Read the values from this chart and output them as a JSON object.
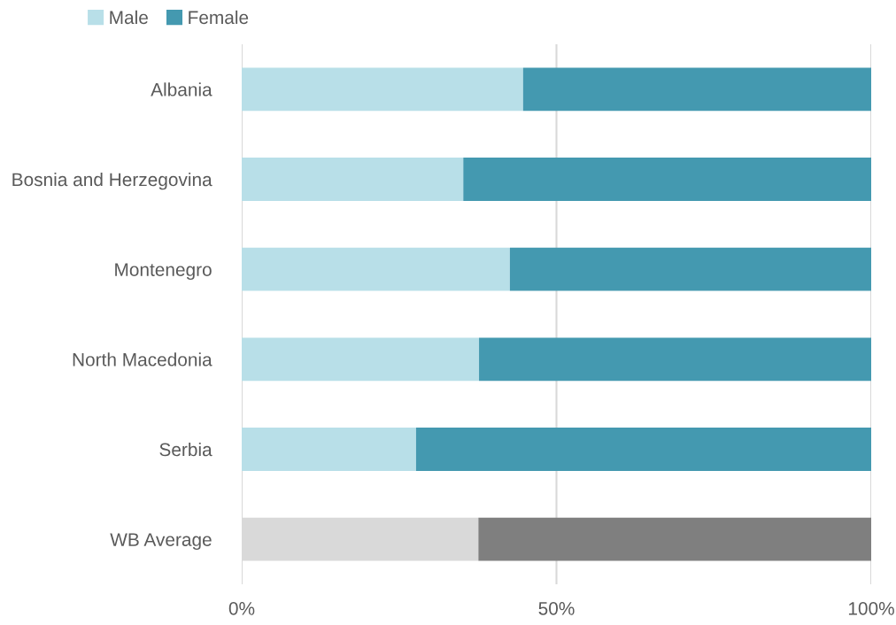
{
  "chart_data": {
    "type": "bar",
    "orientation": "horizontal",
    "stacked": true,
    "categories": [
      "Albania",
      "Bosnia and Herzegovina",
      "Montenegro",
      "North Macedonia",
      "Serbia",
      "WB Average"
    ],
    "series": [
      {
        "name": "Male",
        "color": "#b8dfe8",
        "colors": [
          "#b8dfe8",
          "#b8dfe8",
          "#b8dfe8",
          "#b8dfe8",
          "#b8dfe8",
          "#d9d9d9"
        ],
        "values": [
          44.7,
          35.2,
          42.6,
          37.7,
          27.7,
          37.6
        ]
      },
      {
        "name": "Female",
        "color": "#4499b0",
        "colors": [
          "#4499b0",
          "#4499b0",
          "#4499b0",
          "#4499b0",
          "#4499b0",
          "#7f7f7f"
        ],
        "values": [
          55.3,
          64.8,
          57.4,
          62.3,
          72.3,
          62.4
        ]
      }
    ],
    "xlim": [
      0,
      100
    ],
    "xticks": [
      {
        "value": 0,
        "label": "0%"
      },
      {
        "value": 50,
        "label": "50%"
      },
      {
        "value": 100,
        "label": "100%"
      }
    ],
    "grid": "x",
    "legend": "top left"
  }
}
